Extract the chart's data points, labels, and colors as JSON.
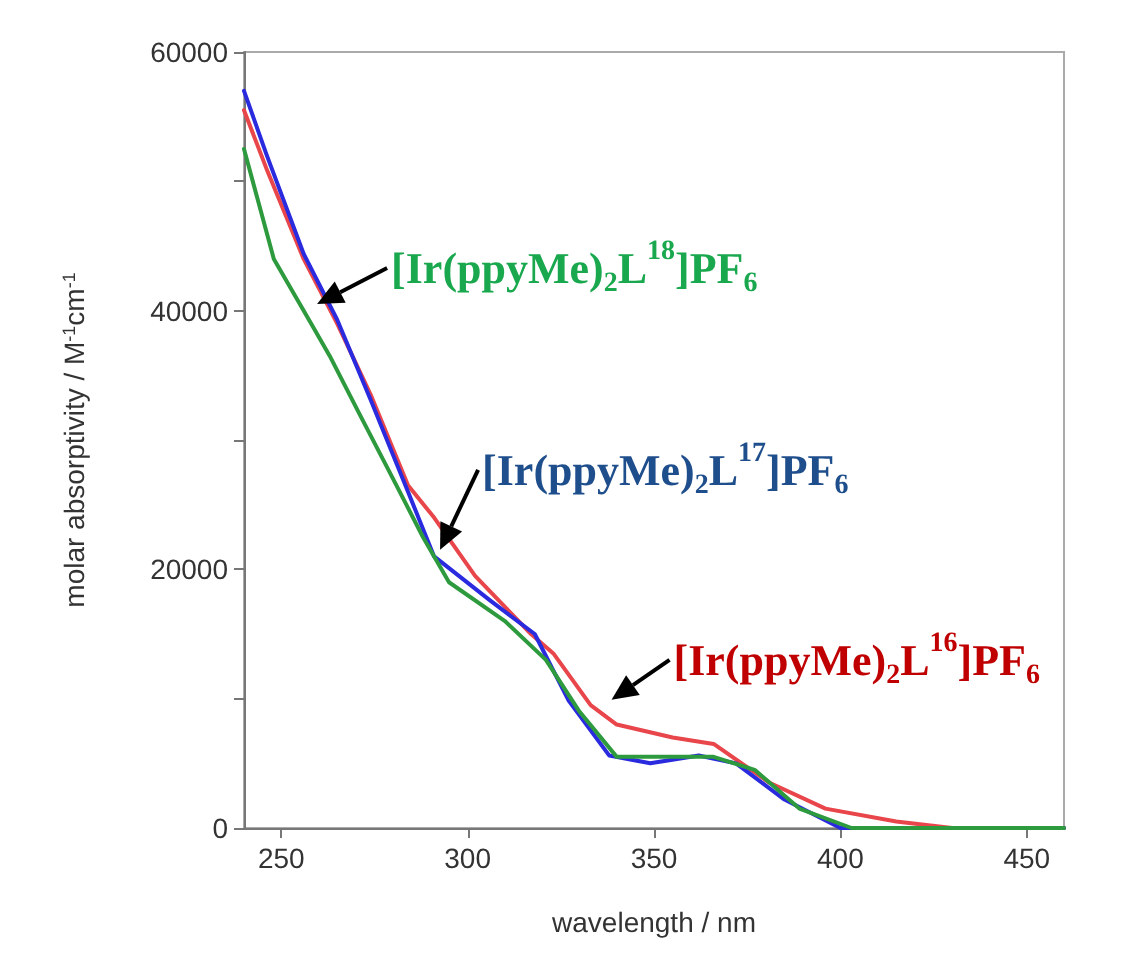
{
  "chart_data": {
    "type": "line",
    "xlabel": "wavelength / nm",
    "ylabel": "molar absorptivity / M$^{-1}$cm$^{-1}$",
    "xlim": [
      240,
      460
    ],
    "xticks": [
      250,
      300,
      350,
      400,
      450
    ],
    "ylim": [
      0,
      60000
    ],
    "yticks": [
      0,
      {
        "value": 10000,
        "label": null
      },
      20000,
      {
        "value": 30000,
        "label": null
      },
      40000,
      {
        "value": 50000,
        "label": null
      },
      60000
    ],
    "grid": false,
    "marker": "none",
    "line_style": "solid",
    "series": [
      {
        "color": "#e8464a",
        "x": [
          240,
          246,
          256,
          265,
          274,
          284,
          291,
          302,
          317,
          323,
          333,
          340,
          355,
          366,
          381,
          396,
          415,
          430,
          460
        ],
        "values": [
          55500,
          51000,
          44000,
          39000,
          33500,
          26500,
          24000,
          19500,
          15000,
          13500,
          9500,
          8000,
          7000,
          6500,
          3500,
          1500,
          500,
          0,
          0
        ]
      },
      {
        "color": "#2a2adf",
        "x": [
          240,
          246,
          256,
          265,
          274,
          284,
          291,
          306,
          318,
          327,
          338,
          349,
          362,
          372,
          385,
          400,
          460
        ],
        "values": [
          57000,
          52100,
          44400,
          39300,
          33100,
          26000,
          21000,
          17600,
          15000,
          9900,
          5600,
          5000,
          5600,
          5000,
          2200,
          0,
          0
        ]
      },
      {
        "color": "#2e9a3e",
        "x": [
          240,
          248,
          258,
          263,
          271,
          280,
          288,
          295,
          310,
          321,
          330,
          340,
          355,
          366,
          377,
          389,
          403,
          460
        ],
        "values": [
          52500,
          44000,
          39000,
          36500,
          32000,
          27000,
          22500,
          19000,
          16000,
          13000,
          9000,
          5500,
          5500,
          5500,
          4500,
          1500,
          0,
          0
        ]
      }
    ],
    "annotations": [
      {
        "text": "[Ir(ppyMe)$_{2}$L$^{16}$]PF$_{6}$",
        "x": 337,
        "y": 9600
      },
      {
        "text": "[Ir(ppyMe)$_{2}$L$^{17}$]PF$_{6}$",
        "x": 291,
        "y": 21200
      },
      {
        "text": "[Ir(ppyMe)$_{2}$L$^{18}$]PF$_{6}$",
        "x": 258,
        "y": 40200
      }
    ]
  }
}
